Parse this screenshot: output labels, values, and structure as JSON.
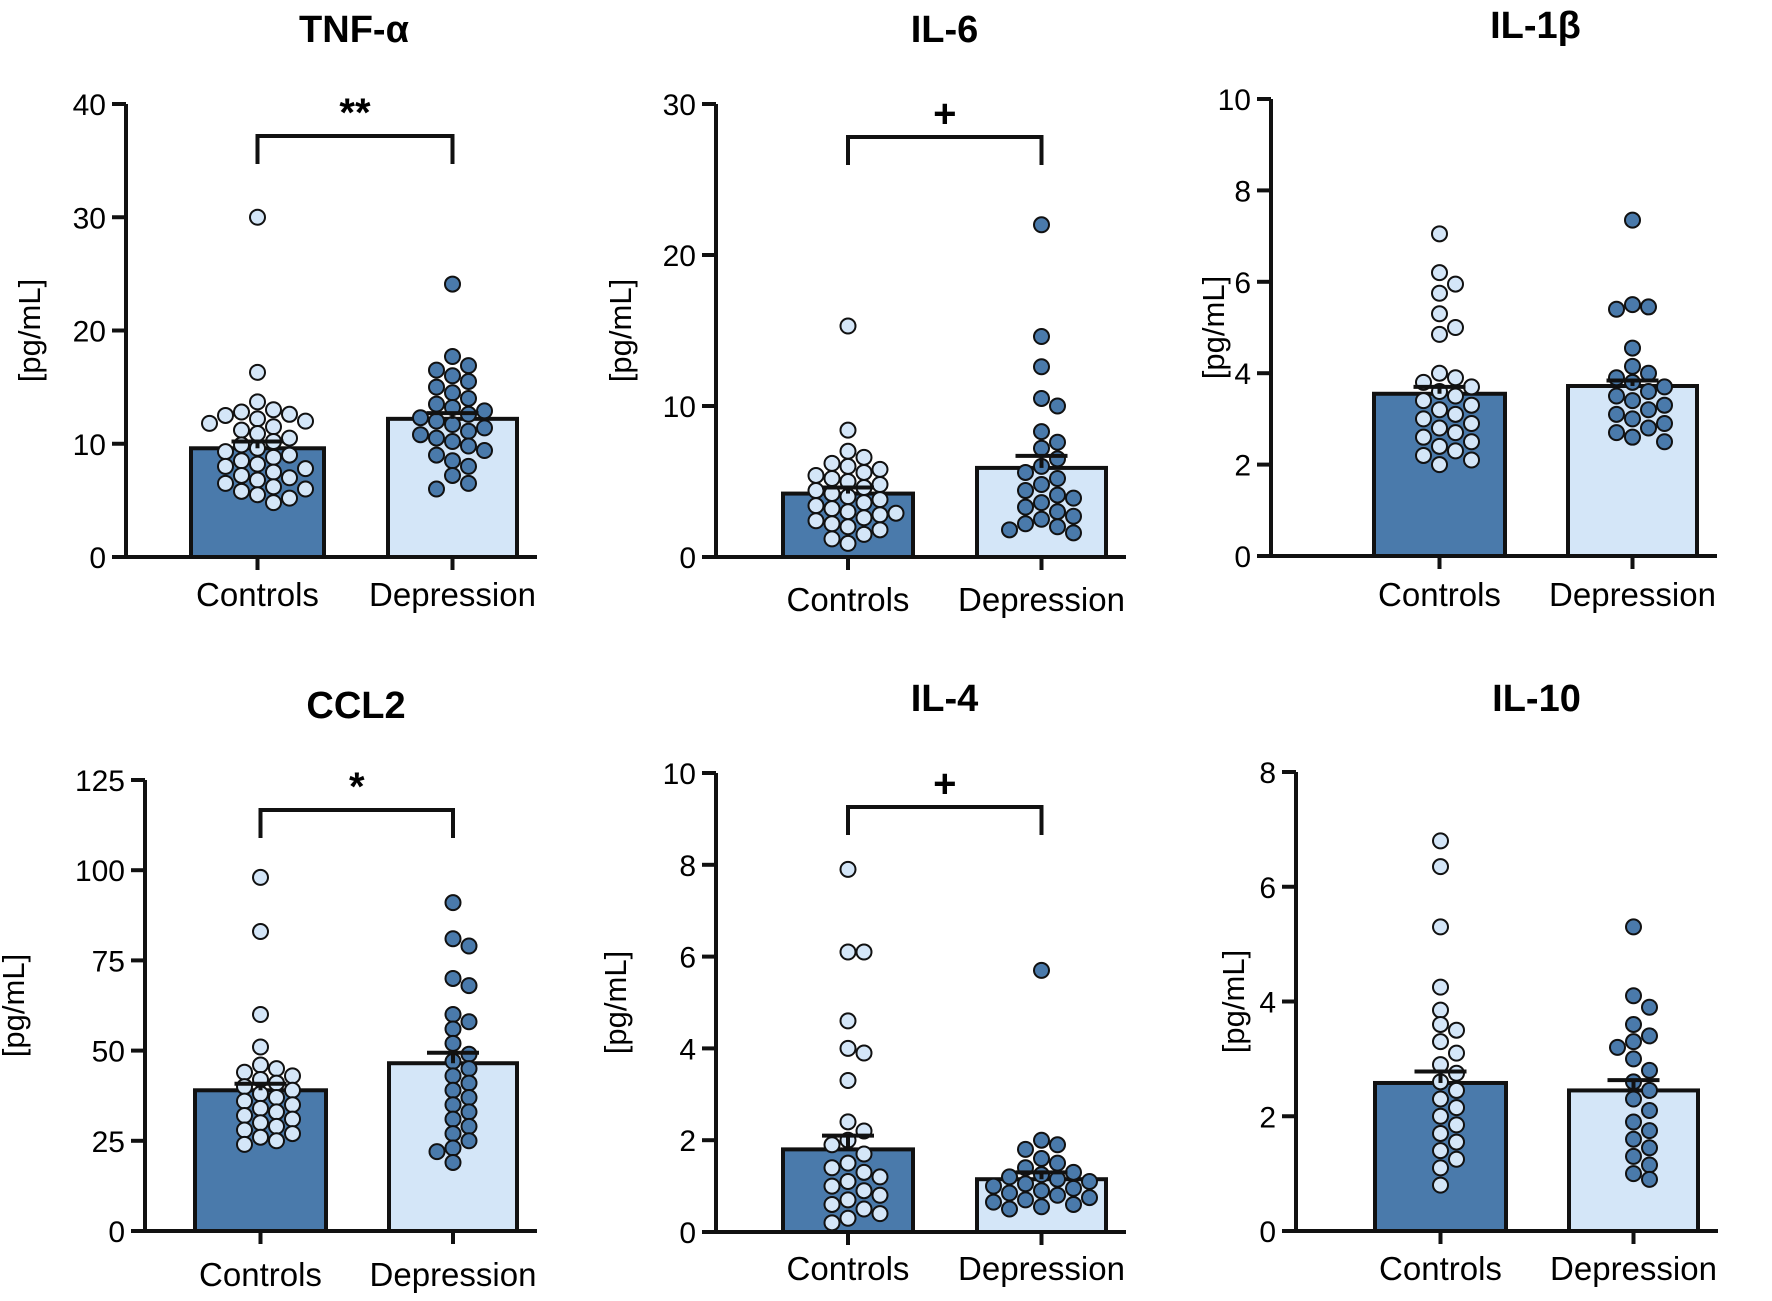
{
  "figure": {
    "colors": {
      "dark_fill": "#4a7aab",
      "light_fill": "#d4e6f8",
      "stroke": "#111111"
    }
  },
  "chart_data": [
    {
      "type": "bar",
      "title": "TNF-α",
      "ylabel": "[pg/mL]",
      "ylim": [
        0,
        40
      ],
      "yticks": [
        0,
        10,
        20,
        30,
        40
      ],
      "categories": [
        "Controls",
        "Depression"
      ],
      "values": [
        9.6,
        12.2
      ],
      "sem": [
        0.6,
        0.5
      ],
      "significance": "**",
      "points": [
        [
          30.0,
          16.3,
          13.7,
          13.0,
          12.8,
          12.6,
          12.5,
          12.2,
          12.0,
          11.8,
          11.5,
          11.2,
          10.9,
          10.5,
          10.2,
          9.9,
          9.6,
          9.3,
          9.0,
          8.8,
          8.5,
          8.2,
          8.0,
          7.8,
          7.5,
          7.2,
          7.0,
          6.8,
          6.5,
          6.2,
          6.0,
          5.8,
          5.5,
          5.2,
          4.8
        ],
        [
          24.1,
          17.7,
          16.9,
          16.5,
          16.0,
          15.5,
          15.0,
          14.5,
          14.0,
          13.5,
          13.2,
          12.9,
          12.6,
          12.3,
          12.0,
          11.7,
          11.4,
          11.1,
          10.8,
          10.5,
          10.2,
          9.8,
          9.4,
          9.0,
          8.5,
          8.0,
          7.2,
          6.5,
          6.0
        ]
      ]
    },
    {
      "type": "bar",
      "title": "IL-6",
      "ylabel": "[pg/mL]",
      "ylim": [
        0,
        30
      ],
      "yticks": [
        0,
        10,
        20,
        30
      ],
      "categories": [
        "Controls",
        "Depression"
      ],
      "values": [
        4.2,
        5.9
      ],
      "sem": [
        0.4,
        0.8
      ],
      "significance": "+",
      "points": [
        [
          15.3,
          8.4,
          7.0,
          6.6,
          6.2,
          6.0,
          5.8,
          5.6,
          5.4,
          5.2,
          5.0,
          4.8,
          4.6,
          4.4,
          4.2,
          4.0,
          3.8,
          3.6,
          3.4,
          3.2,
          3.0,
          2.9,
          2.8,
          2.6,
          2.4,
          2.2,
          2.0,
          1.8,
          1.5,
          1.2,
          0.9
        ],
        [
          22.0,
          14.6,
          12.6,
          10.5,
          10.0,
          8.3,
          7.6,
          7.2,
          6.5,
          6.0,
          5.6,
          5.2,
          4.8,
          4.4,
          4.1,
          3.9,
          3.6,
          3.3,
          3.0,
          2.7,
          2.5,
          2.2,
          2.0,
          1.8,
          1.6
        ]
      ]
    },
    {
      "type": "bar",
      "title": "IL-1β",
      "ylabel": "[pg/mL]",
      "ylim": [
        0,
        10
      ],
      "yticks": [
        0,
        2,
        4,
        6,
        8,
        10
      ],
      "categories": [
        "Controls",
        "Depression"
      ],
      "values": [
        3.55,
        3.72
      ],
      "sem": [
        0.15,
        0.12
      ],
      "significance": "",
      "points": [
        [
          7.05,
          6.2,
          5.95,
          5.75,
          5.3,
          5.0,
          4.85,
          4.0,
          3.9,
          3.8,
          3.7,
          3.6,
          3.5,
          3.4,
          3.3,
          3.2,
          3.1,
          3.0,
          2.9,
          2.8,
          2.7,
          2.6,
          2.5,
          2.4,
          2.3,
          2.2,
          2.1,
          2.0
        ],
        [
          7.35,
          5.5,
          5.45,
          5.4,
          4.55,
          4.15,
          4.0,
          3.9,
          3.8,
          3.7,
          3.6,
          3.5,
          3.4,
          3.3,
          3.2,
          3.1,
          3.0,
          2.9,
          2.8,
          2.7,
          2.6,
          2.5
        ]
      ]
    },
    {
      "type": "bar",
      "title": "CCL2",
      "ylabel": "[pg/mL]",
      "ylim": [
        0,
        125
      ],
      "yticks": [
        0,
        25,
        50,
        75,
        100,
        125
      ],
      "categories": [
        "Controls",
        "Depression"
      ],
      "values": [
        39,
        46.5
      ],
      "sem": [
        1.8,
        2.9
      ],
      "significance": "*",
      "points": [
        [
          98,
          83,
          60,
          51,
          46,
          45,
          44,
          43,
          42,
          41,
          40,
          39,
          38,
          37,
          36,
          35,
          34,
          33,
          32,
          31,
          30,
          29,
          28,
          27,
          26,
          25,
          24
        ],
        [
          91,
          81,
          79,
          70,
          68,
          60,
          58,
          56,
          52,
          49,
          47,
          45,
          43,
          41,
          39,
          37,
          35,
          33,
          31,
          29,
          27,
          25,
          23,
          22,
          19
        ]
      ]
    },
    {
      "type": "bar",
      "title": "IL-4",
      "ylabel": "[pg/mL]",
      "ylim": [
        0,
        10
      ],
      "yticks": [
        0,
        2,
        4,
        6,
        8,
        10
      ],
      "categories": [
        "Controls",
        "Depression"
      ],
      "values": [
        1.8,
        1.15
      ],
      "sem": [
        0.3,
        0.15
      ],
      "significance": "+",
      "points": [
        [
          7.9,
          6.1,
          6.1,
          4.6,
          4.0,
          3.9,
          3.3,
          2.4,
          2.2,
          2.0,
          1.9,
          1.7,
          1.5,
          1.4,
          1.3,
          1.2,
          1.1,
          1.0,
          0.9,
          0.8,
          0.7,
          0.6,
          0.5,
          0.4,
          0.3,
          0.2
        ],
        [
          5.7,
          2.0,
          1.9,
          1.8,
          1.6,
          1.5,
          1.4,
          1.3,
          1.25,
          1.2,
          1.15,
          1.1,
          1.05,
          1.0,
          0.95,
          0.9,
          0.85,
          0.8,
          0.75,
          0.7,
          0.65,
          0.6,
          0.55,
          0.5
        ]
      ]
    },
    {
      "type": "bar",
      "title": "IL-10",
      "ylabel": "[pg/mL]",
      "ylim": [
        0,
        8
      ],
      "yticks": [
        0,
        2,
        4,
        6,
        8
      ],
      "categories": [
        "Controls",
        "Depression"
      ],
      "values": [
        2.58,
        2.45
      ],
      "sem": [
        0.2,
        0.18
      ],
      "significance": "",
      "points": [
        [
          6.8,
          6.35,
          5.3,
          4.25,
          3.85,
          3.6,
          3.5,
          3.3,
          3.1,
          2.9,
          2.75,
          2.6,
          2.45,
          2.3,
          2.15,
          2.0,
          1.85,
          1.7,
          1.55,
          1.4,
          1.25,
          1.1,
          0.8
        ],
        [
          5.3,
          4.1,
          3.9,
          3.6,
          3.4,
          3.3,
          3.2,
          3.0,
          2.8,
          2.6,
          2.45,
          2.3,
          2.1,
          1.9,
          1.75,
          1.6,
          1.45,
          1.3,
          1.15,
          1.0,
          0.9
        ]
      ]
    }
  ]
}
